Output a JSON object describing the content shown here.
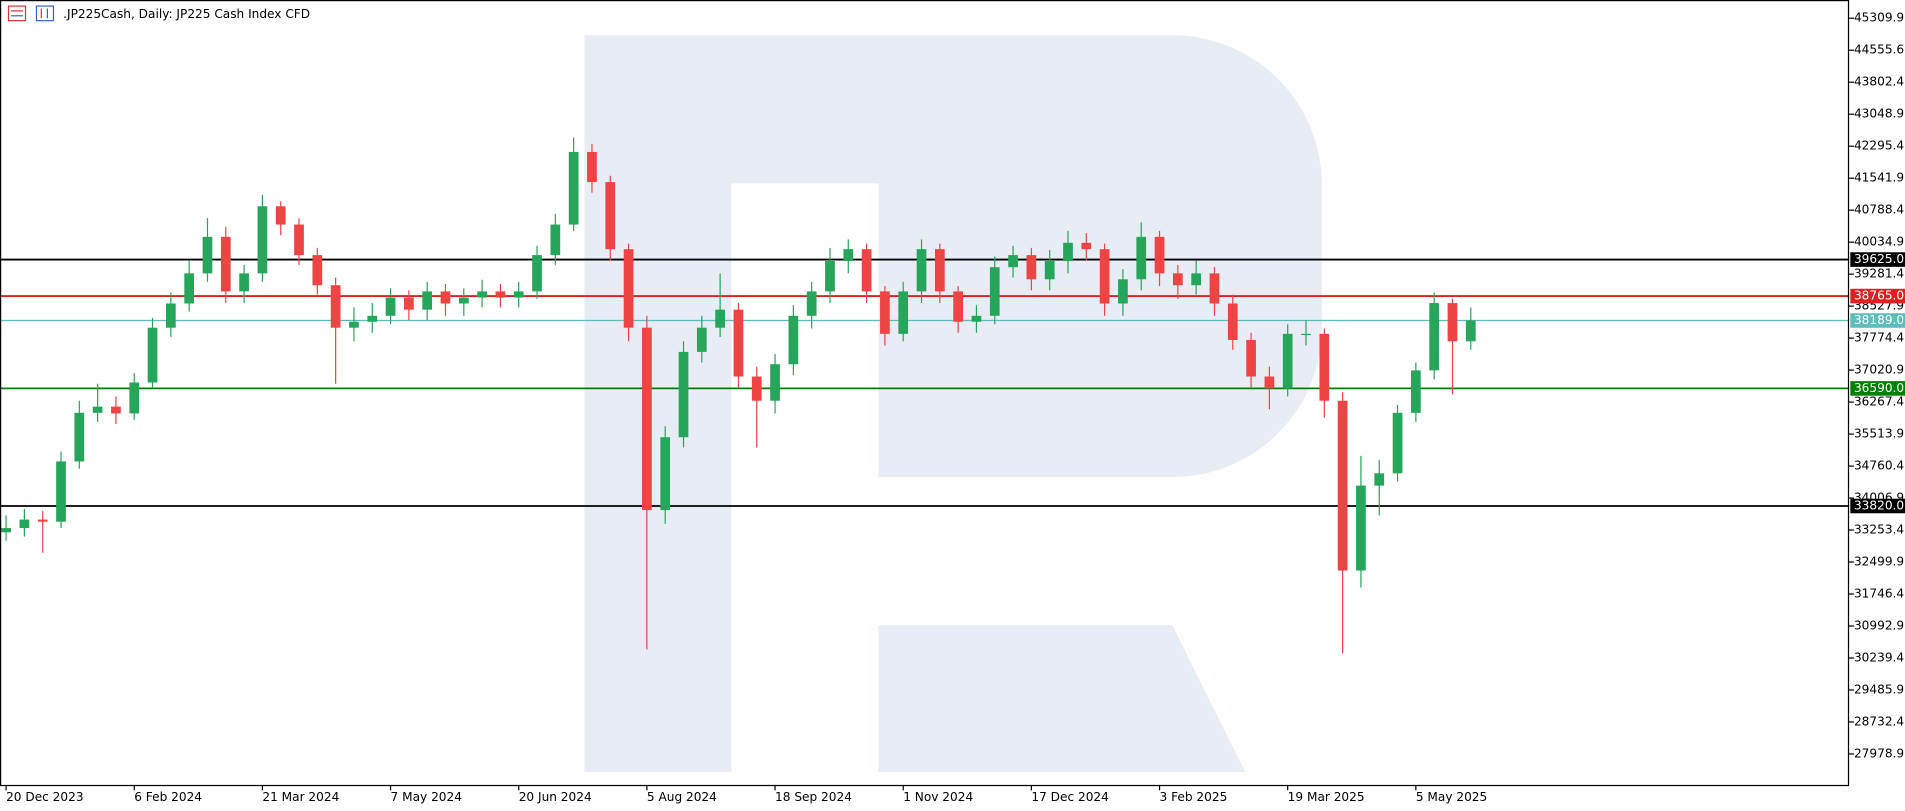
{
  "chart_data": {
    "type": "candlestick",
    "title": ".JP225Cash, Daily:  JP225 Cash Index CFD",
    "x": [
      "20 Dec 2023",
      null,
      null,
      null,
      null,
      null,
      null,
      "6 Feb 2024",
      null,
      null,
      null,
      null,
      null,
      null,
      "21 Mar 2024",
      null,
      null,
      null,
      null,
      null,
      null,
      "7 May 2024",
      null,
      null,
      null,
      null,
      null,
      null,
      "20 Jun 2024",
      null,
      null,
      null,
      null,
      null,
      null,
      "5 Aug 2024",
      null,
      null,
      null,
      null,
      null,
      null,
      "18 Sep 2024",
      null,
      null,
      null,
      null,
      null,
      null,
      "1 Nov 2024",
      null,
      null,
      null,
      null,
      null,
      null,
      "17 Dec 2024",
      null,
      null,
      null,
      null,
      null,
      null,
      "3 Feb 2025",
      null,
      null,
      null,
      null,
      null,
      null,
      "19 Mar 2025",
      null,
      null,
      null,
      null,
      null,
      null,
      "5 May 2025",
      null,
      null,
      null
    ],
    "open": [
      33200,
      33300,
      33500,
      33450,
      34870,
      36015,
      36160,
      36000,
      36730,
      38020,
      38590,
      39300,
      40160,
      38875,
      39300,
      40880,
      40450,
      39730,
      39020,
      38020,
      38160,
      38300,
      38730,
      38445,
      38875,
      38590,
      38730,
      38875,
      38730,
      38875,
      39730,
      40450,
      42160,
      41450,
      39870,
      38020,
      33725,
      35440,
      37450,
      38020,
      38445,
      36870,
      36300,
      37160,
      38300,
      38875,
      39590,
      39870,
      38875,
      37875,
      38875,
      39870,
      38875,
      38160,
      38300,
      39445,
      39730,
      39160,
      39590,
      40020,
      39870,
      38590,
      39160,
      40160,
      39300,
      39020,
      39300,
      38590,
      37730,
      36870,
      36590,
      37875,
      37875,
      36300,
      32300,
      34300,
      34590,
      36015,
      37015,
      38600,
      37700
    ],
    "high": [
      33600,
      33750,
      33700,
      35100,
      36300,
      36700,
      36400,
      36950,
      38250,
      38850,
      39600,
      40600,
      40400,
      39500,
      41150,
      41000,
      40600,
      39900,
      39200,
      38500,
      38600,
      38950,
      38900,
      39100,
      39050,
      38950,
      39150,
      39050,
      39100,
      39950,
      40700,
      42500,
      42350,
      41600,
      40000,
      38300,
      35700,
      37700,
      38300,
      39300,
      38600,
      37100,
      37400,
      38550,
      39100,
      39900,
      40100,
      40000,
      39000,
      39100,
      40100,
      40000,
      39000,
      38550,
      39700,
      39950,
      39900,
      39850,
      40300,
      40250,
      40000,
      39400,
      40500,
      40300,
      39500,
      39600,
      39450,
      38800,
      37900,
      37100,
      38100,
      38200,
      38000,
      36500,
      35000,
      34900,
      36200,
      37200,
      38850,
      38700,
      38500
    ],
    "low": [
      33000,
      33100,
      32720,
      33300,
      34700,
      35800,
      35750,
      35850,
      36600,
      37800,
      38400,
      39100,
      38600,
      38600,
      39100,
      40200,
      39500,
      38800,
      36700,
      37700,
      37900,
      38100,
      38200,
      38200,
      38300,
      38300,
      38500,
      38500,
      38500,
      38700,
      39500,
      40300,
      41200,
      39600,
      37700,
      30440,
      33400,
      35200,
      37200,
      37800,
      36600,
      35200,
      36000,
      36900,
      38000,
      38600,
      39300,
      38600,
      37600,
      37700,
      38600,
      38600,
      37900,
      37900,
      38100,
      39200,
      38900,
      38900,
      39300,
      39600,
      38300,
      38300,
      38900,
      39000,
      38700,
      38800,
      38300,
      37500,
      36600,
      36100,
      36400,
      37600,
      35900,
      30350,
      31900,
      33600,
      34400,
      35800,
      36800,
      36450,
      37500
    ],
    "close": [
      33300,
      33500,
      33450,
      34870,
      36015,
      36160,
      36000,
      36730,
      38020,
      38590,
      39300,
      40160,
      38875,
      39300,
      40880,
      40450,
      39730,
      39020,
      38020,
      38160,
      38300,
      38730,
      38445,
      38875,
      38590,
      38730,
      38875,
      38730,
      38875,
      39730,
      40450,
      42160,
      41450,
      39870,
      38020,
      33725,
      35440,
      37450,
      38020,
      38445,
      36870,
      36300,
      37160,
      38300,
      38875,
      39590,
      39870,
      38875,
      37875,
      38875,
      39870,
      38875,
      38160,
      38300,
      39445,
      39730,
      39160,
      39590,
      40020,
      39870,
      38590,
      39160,
      40160,
      39300,
      39020,
      39300,
      38590,
      37730,
      36870,
      36590,
      37875,
      37875,
      36300,
      32300,
      34300,
      34590,
      36015,
      37015,
      38600,
      37700,
      38189
    ],
    "up_color": "#26a65b",
    "down_color": "#ef4444",
    "ylim": [
      27236,
      45739
    ],
    "yticks": [
      45309.9,
      44555.6,
      43802.4,
      43048.9,
      42295.4,
      41541.9,
      40788.4,
      40034.9,
      39281.4,
      38527.9,
      37774.4,
      37020.9,
      36267.4,
      35513.9,
      34760.4,
      34006.9,
      33253.4,
      32499.9,
      31746.4,
      30992.9,
      30239.4,
      29485.9,
      28732.4,
      27978.9
    ],
    "levels": [
      {
        "value": 39625,
        "label": "39625.0",
        "color": "#000000"
      },
      {
        "value": 38765,
        "label": "38765.0",
        "color": "#e02020"
      },
      {
        "value": 38189,
        "label": "38189.0",
        "color": "#5fbcbc"
      },
      {
        "value": 36590,
        "label": "36590.0",
        "color": "#008000"
      },
      {
        "value": 33820,
        "label": "33820.0",
        "color": "#000000"
      }
    ]
  }
}
